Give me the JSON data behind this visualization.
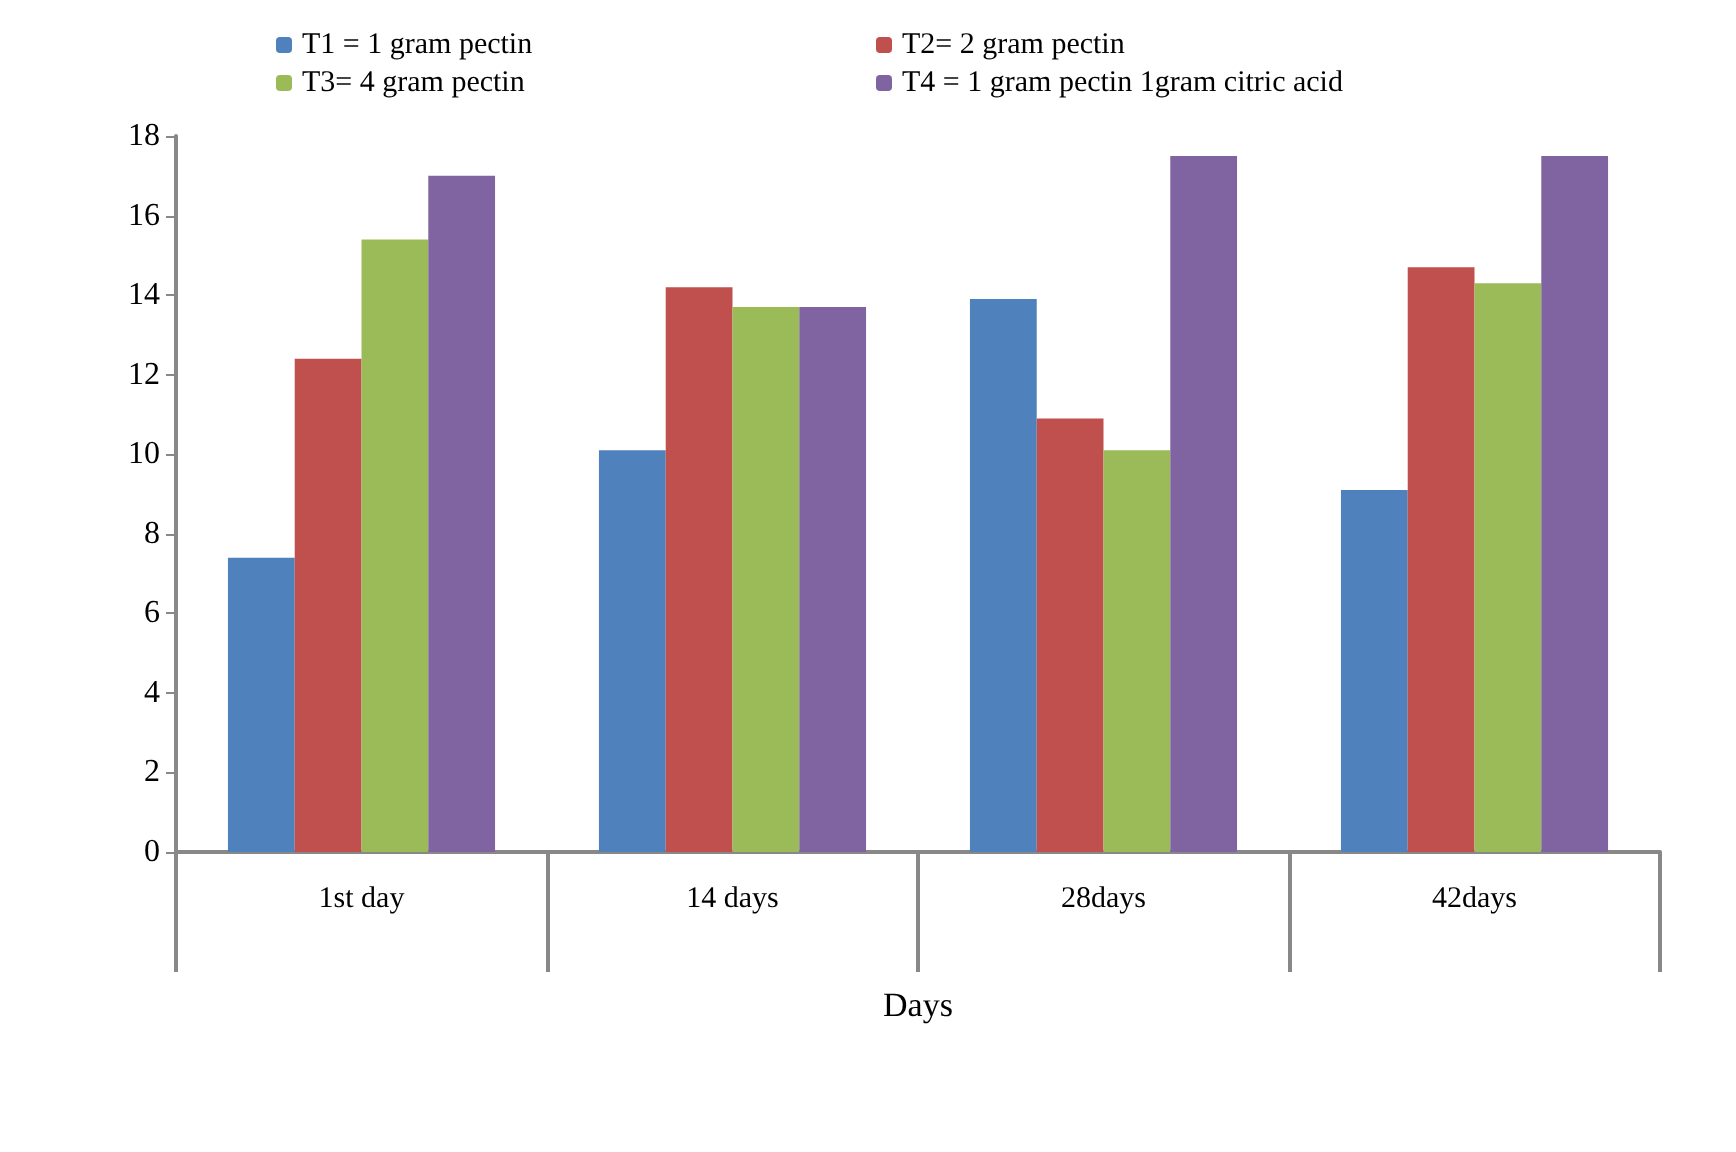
{
  "chart_data": {
    "type": "bar",
    "xlabel": "Days",
    "categories": [
      "1st day",
      "14 days",
      "28days",
      "42days"
    ],
    "series": [
      {
        "name": "T1 = 1 gram pectin",
        "color": "#4f81bd",
        "values": [
          7.4,
          10.1,
          13.9,
          9.1
        ]
      },
      {
        "name": "T2= 2 gram pectin",
        "color": "#c0504d",
        "values": [
          12.4,
          14.2,
          10.9,
          14.7
        ]
      },
      {
        "name": "T3= 4 gram pectin",
        "color": "#9bbb59",
        "values": [
          15.4,
          13.7,
          10.1,
          14.3
        ]
      },
      {
        "name": "T4 = 1 gram pectin 1gram citric acid",
        "color": "#8064a2",
        "values": [
          17.0,
          13.7,
          17.5,
          17.5
        ]
      }
    ],
    "ylim": [
      0,
      18
    ],
    "yticks": [
      0,
      2,
      4,
      6,
      8,
      10,
      12,
      14,
      16,
      18
    ],
    "grid": false,
    "legend": "top"
  }
}
